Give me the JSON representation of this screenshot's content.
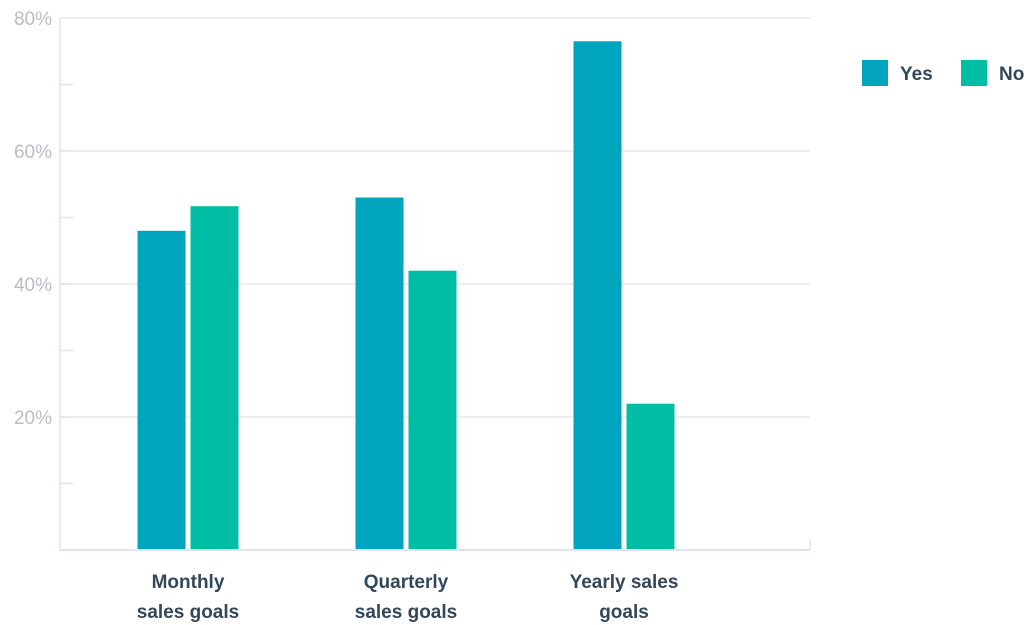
{
  "chart_data": {
    "type": "bar",
    "categories": [
      [
        "Monthly",
        "sales goals"
      ],
      [
        "Quarterly",
        "sales goals"
      ],
      [
        "Yearly sales",
        "goals"
      ]
    ],
    "series": [
      {
        "name": "Yes",
        "color": "#00a4bd",
        "values": [
          48,
          53,
          76.5
        ]
      },
      {
        "name": "No",
        "color": "#00bda5",
        "values": [
          51.7,
          42,
          22
        ]
      }
    ],
    "ylim": [
      0,
      80
    ],
    "yticks": [
      {
        "value": 20,
        "label": "20%"
      },
      {
        "value": 40,
        "label": "40%"
      },
      {
        "value": 60,
        "label": "60%"
      },
      {
        "value": 80,
        "label": "80%"
      }
    ],
    "minor_tick_step": 10,
    "grid": true,
    "legend_position": "top-right",
    "title": "",
    "xlabel": "",
    "ylabel": ""
  }
}
